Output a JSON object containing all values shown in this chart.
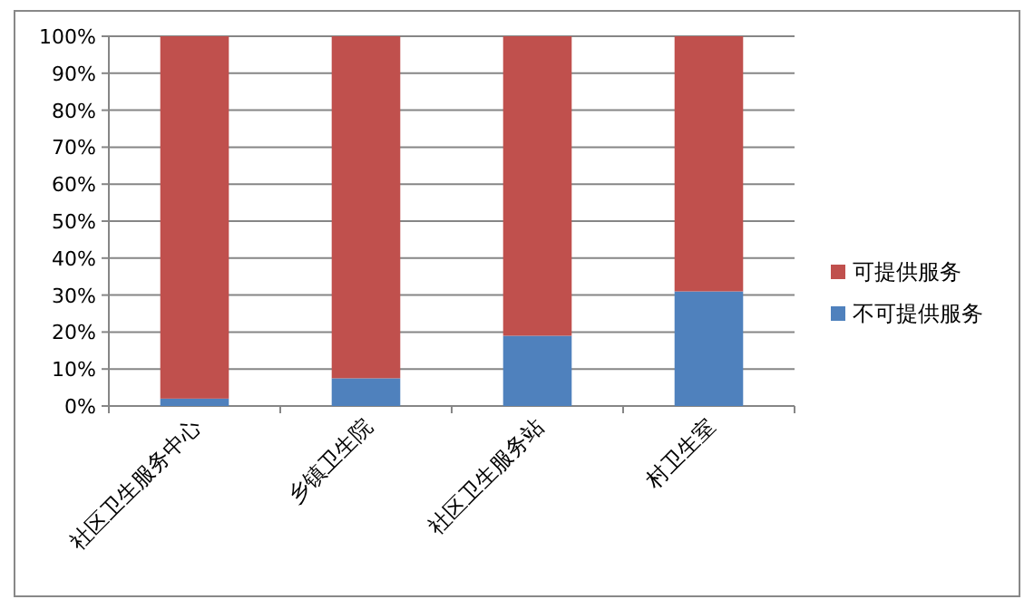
{
  "chart_data": {
    "type": "bar",
    "stacked": true,
    "categories": [
      "社区卫生服务中心",
      "乡镇卫生院",
      "社区卫生服务站",
      "村卫生室"
    ],
    "series": [
      {
        "name": "不可提供服务",
        "color": "#4f81bd",
        "values": [
          2,
          7.5,
          19,
          31
        ]
      },
      {
        "name": "可提供服务",
        "color": "#c0504d",
        "values": [
          98,
          92.5,
          81,
          69
        ]
      }
    ],
    "ylim": [
      0,
      100
    ],
    "yticks": [
      {
        "value": 0,
        "label": "0%"
      },
      {
        "value": 10,
        "label": "10%"
      },
      {
        "value": 20,
        "label": "20%"
      },
      {
        "value": 30,
        "label": "30%"
      },
      {
        "value": 40,
        "label": "40%"
      },
      {
        "value": 50,
        "label": "50%"
      },
      {
        "value": 60,
        "label": "60%"
      },
      {
        "value": 70,
        "label": "70%"
      },
      {
        "value": 80,
        "label": "80%"
      },
      {
        "value": 90,
        "label": "90%"
      },
      {
        "value": 100,
        "label": "100%"
      }
    ],
    "grid": "y",
    "legend": "right"
  }
}
